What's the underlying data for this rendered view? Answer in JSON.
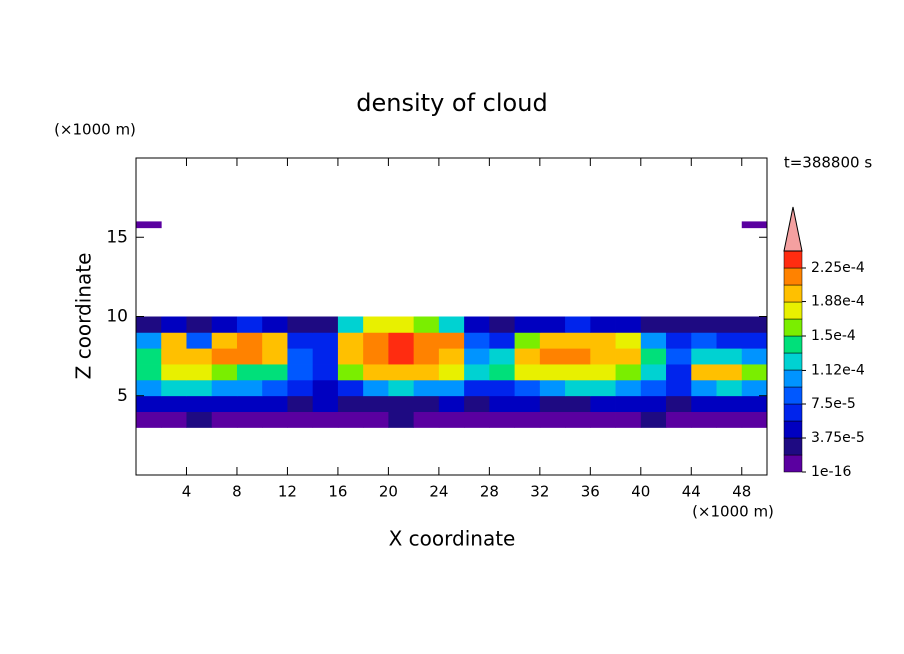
{
  "chart_data": {
    "type": "contour",
    "title": "density of cloud",
    "x_label": "X coordinate",
    "y_label": "Z coordinate",
    "x_unit": "(×1000 m)",
    "y_unit": "(×1000 m)",
    "time_label": "t=388800 s",
    "xlim": [
      0,
      50
    ],
    "ylim": [
      0,
      20
    ],
    "xticks": [
      4,
      8,
      12,
      16,
      20,
      24,
      28,
      32,
      36,
      40,
      44,
      48
    ],
    "yticks": [
      5,
      10,
      15
    ],
    "x_edges": [
      0,
      2,
      4,
      6,
      8,
      10,
      12,
      14,
      16,
      18,
      20,
      22,
      24,
      26,
      28,
      30,
      32,
      34,
      36,
      38,
      40,
      42,
      44,
      46,
      48,
      50
    ],
    "z_edges": [
      3,
      4,
      5,
      6,
      7,
      8,
      9,
      10,
      15.6,
      16
    ],
    "field": [
      [
        1e-05,
        1e-05,
        2e-05,
        1e-05,
        1e-05,
        1e-05,
        1e-05,
        1e-05,
        1e-05,
        1e-05,
        2e-05,
        1e-05,
        1e-05,
        1e-05,
        1e-05,
        1e-05,
        1e-05,
        1e-05,
        1e-05,
        1e-05,
        2e-05,
        1e-05,
        1e-05,
        1e-05,
        1e-05
      ],
      [
        4e-05,
        5e-05,
        5e-05,
        4e-05,
        4e-05,
        4e-05,
        3e-05,
        4e-05,
        3e-05,
        3e-05,
        3e-05,
        3e-05,
        4e-05,
        3e-05,
        4e-05,
        4e-05,
        3e-05,
        3e-05,
        4e-05,
        4e-05,
        4e-05,
        3e-05,
        4e-05,
        4e-05,
        5e-05
      ],
      [
        0.0001,
        0.00012,
        0.00012,
        0.00011,
        0.0001,
        9e-05,
        7e-05,
        5e-05,
        6e-05,
        0.0001,
        0.00012,
        0.00011,
        0.0001,
        7e-05,
        6e-05,
        9e-05,
        0.00011,
        0.00012,
        0.00012,
        0.00011,
        9e-05,
        6e-05,
        0.00011,
        0.00012,
        0.0001
      ],
      [
        0.00015,
        0.00017,
        0.00017,
        0.00016,
        0.00015,
        0.00014,
        8e-05,
        6e-05,
        0.00016,
        0.00019,
        0.0002,
        0.00019,
        0.00017,
        0.00012,
        0.00014,
        0.00017,
        0.00018,
        0.00018,
        0.00017,
        0.00016,
        0.00013,
        7e-05,
        0.0002,
        0.00019,
        0.00016
      ],
      [
        0.00014,
        0.0002,
        0.00019,
        0.00021,
        0.00021,
        0.0002,
        9e-05,
        7e-05,
        0.00019,
        0.00022,
        0.00023,
        0.00022,
        0.0002,
        0.0001,
        0.00012,
        0.00019,
        0.00021,
        0.00021,
        0.0002,
        0.00019,
        0.00014,
        9e-05,
        0.00013,
        0.00012,
        0.00011
      ],
      [
        0.0001,
        0.00019,
        8e-05,
        0.0002,
        0.00021,
        0.00019,
        7e-05,
        6e-05,
        0.0002,
        0.00022,
        0.00023,
        0.00022,
        0.00021,
        8e-05,
        7e-05,
        0.00016,
        0.00019,
        0.0002,
        0.0002,
        0.00018,
        0.0001,
        6e-05,
        8e-05,
        7e-05,
        6e-05
      ],
      [
        3e-05,
        4e-05,
        3e-05,
        5e-05,
        6e-05,
        4e-05,
        3e-05,
        3e-05,
        0.00012,
        0.00017,
        0.00018,
        0.00016,
        0.00013,
        4e-05,
        3e-05,
        4e-05,
        5e-05,
        6e-05,
        5e-05,
        4e-05,
        3e-05,
        3e-05,
        3e-05,
        3e-05,
        3e-05
      ],
      [
        null,
        null,
        null,
        null,
        null,
        null,
        null,
        null,
        null,
        null,
        null,
        null,
        null,
        null,
        null,
        null,
        null,
        null,
        null,
        null,
        null,
        null,
        null,
        null,
        null
      ],
      [
        1e-05,
        null,
        null,
        null,
        null,
        null,
        null,
        null,
        null,
        null,
        null,
        null,
        null,
        null,
        null,
        null,
        null,
        null,
        null,
        null,
        null,
        null,
        null,
        null,
        1e-05
      ]
    ],
    "clim": [
      1e-16,
      0.00024375
    ],
    "colorbar_colors": [
      "#5a00a0",
      "#1e0a82",
      "#0000c0",
      "#0024ec",
      "#0058ff",
      "#0094ff",
      "#00d2d2",
      "#00e07a",
      "#7aee00",
      "#e8f000",
      "#ffc000",
      "#ff8200",
      "#ff2c10"
    ],
    "extend_color": "#f4a0a0",
    "colorbar_ticks": [
      1e-16,
      {
        "value": 3.75e-05,
        "label": "3.75e-5"
      },
      {
        "value": 7.5e-05,
        "label": "7.5e-5"
      },
      {
        "value": 0.000112,
        "label": "1.12e-4"
      },
      {
        "value": 0.00015,
        "label": "1.5e-4"
      },
      {
        "value": 0.000188,
        "label": "1.88e-4"
      },
      {
        "value": 0.000225,
        "label": "2.25e-4"
      }
    ]
  }
}
